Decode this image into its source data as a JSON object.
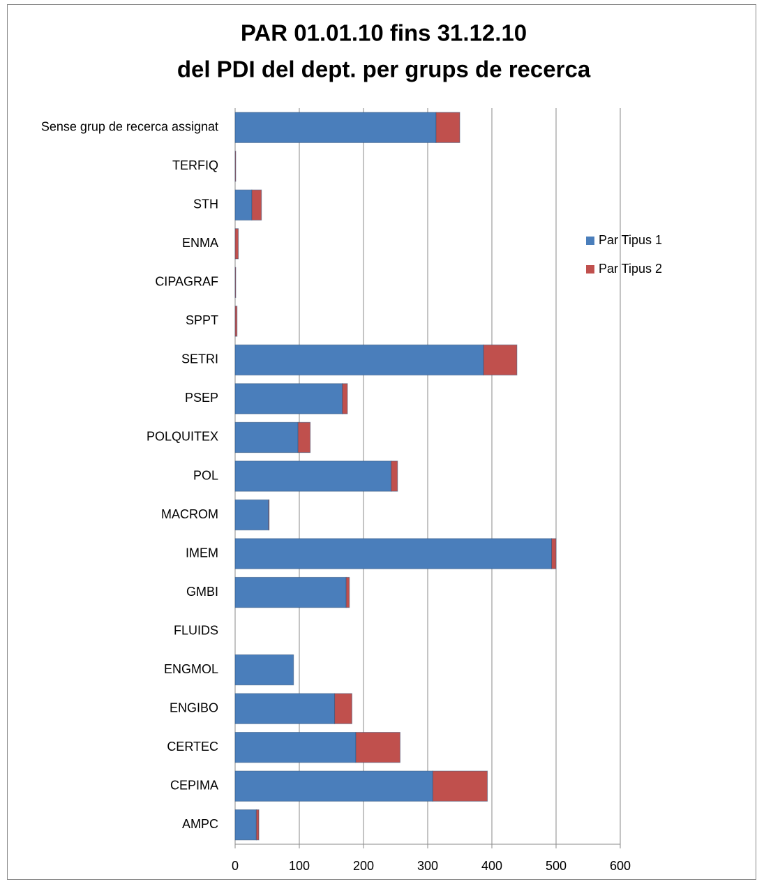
{
  "chart_data": {
    "type": "stacked_barh",
    "title": [
      "PAR 01.01.10 fins 31.12.10",
      "del PDI del dept. per grups de recerca"
    ],
    "categories": [
      "Sense grup de recerca assignat",
      "TERFIQ",
      "STH",
      "ENMA",
      "CIPAGRAF",
      "SPPT",
      "SETRI",
      "PSEP",
      "POLQUITEX",
      "POL",
      "MACROM",
      "IMEM",
      "GMBI",
      "FLUIDS",
      "ENGMOL",
      "ENGIBO",
      "CERTEC",
      "CEPIMA",
      "AMPC"
    ],
    "series": [
      {
        "name": "Par Tipus 1",
        "color": "#4a7ebb",
        "values": [
          313,
          0,
          26,
          0,
          0,
          0,
          387,
          167,
          98,
          243,
          52,
          493,
          173,
          0,
          91,
          155,
          188,
          308,
          33
        ]
      },
      {
        "name": "Par Tipus 2",
        "color": "#c0504d",
        "values": [
          37,
          1,
          15,
          5,
          1,
          3,
          52,
          8,
          19,
          10,
          1,
          7,
          5,
          0,
          0,
          27,
          69,
          85,
          4
        ]
      }
    ],
    "xlim": [
      0,
      600
    ],
    "xticks": [
      0,
      100,
      200,
      300,
      400,
      500,
      600
    ],
    "grid": true,
    "legend": "right"
  }
}
